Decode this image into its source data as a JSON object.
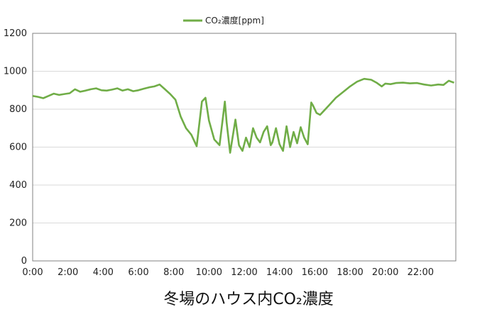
{
  "chart_data": {
    "type": "line",
    "title": "冬場のハウス内CO₂濃度",
    "xlabel": "",
    "ylabel": "",
    "ylim": [
      0,
      1200
    ],
    "yticks": [
      0,
      200,
      400,
      600,
      800,
      1000,
      1200
    ],
    "xlim": [
      0,
      24
    ],
    "xticks": [
      "0:00",
      "2:00",
      "4:00",
      "6:00",
      "8:00",
      "10:00",
      "12:00",
      "14:00",
      "16:00",
      "18:00",
      "20:00",
      "22:00"
    ],
    "grid": "horizontal",
    "legend_position": "top-center",
    "series": [
      {
        "name": "CO₂濃度[ppm]",
        "color": "#70ad47",
        "x": [
          0,
          0.3,
          0.6,
          0.9,
          1.2,
          1.5,
          1.8,
          2.1,
          2.4,
          2.7,
          3.0,
          3.3,
          3.6,
          3.9,
          4.2,
          4.5,
          4.8,
          5.1,
          5.4,
          5.7,
          6.0,
          6.3,
          6.6,
          6.9,
          7.2,
          7.5,
          7.8,
          8.1,
          8.4,
          8.7,
          9.0,
          9.3,
          9.6,
          9.8,
          10.0,
          10.3,
          10.6,
          10.9,
          11.0,
          11.2,
          11.5,
          11.7,
          11.9,
          12.1,
          12.3,
          12.5,
          12.7,
          12.9,
          13.1,
          13.3,
          13.5,
          13.6,
          13.8,
          14.0,
          14.2,
          14.4,
          14.6,
          14.8,
          15.0,
          15.2,
          15.4,
          15.6,
          15.8,
          15.9,
          16.1,
          16.3,
          16.5,
          16.8,
          17.2,
          17.6,
          18.0,
          18.4,
          18.8,
          19.2,
          19.5,
          19.8,
          20.0,
          20.3,
          20.6,
          21.0,
          21.4,
          21.8,
          22.2,
          22.6,
          23.0,
          23.3,
          23.6,
          23.9
        ],
        "values": [
          870,
          865,
          858,
          870,
          882,
          875,
          880,
          884,
          905,
          892,
          898,
          905,
          910,
          900,
          898,
          903,
          910,
          898,
          905,
          895,
          900,
          908,
          915,
          920,
          930,
          905,
          880,
          850,
          760,
          700,
          665,
          605,
          840,
          860,
          740,
          640,
          610,
          840,
          730,
          570,
          745,
          610,
          580,
          650,
          600,
          700,
          650,
          625,
          680,
          710,
          610,
          625,
          700,
          615,
          580,
          710,
          600,
          680,
          620,
          705,
          650,
          615,
          835,
          820,
          780,
          770,
          790,
          820,
          860,
          890,
          920,
          945,
          960,
          955,
          940,
          920,
          935,
          932,
          938,
          940,
          936,
          938,
          930,
          925,
          930,
          928,
          950,
          940
        ]
      }
    ]
  }
}
